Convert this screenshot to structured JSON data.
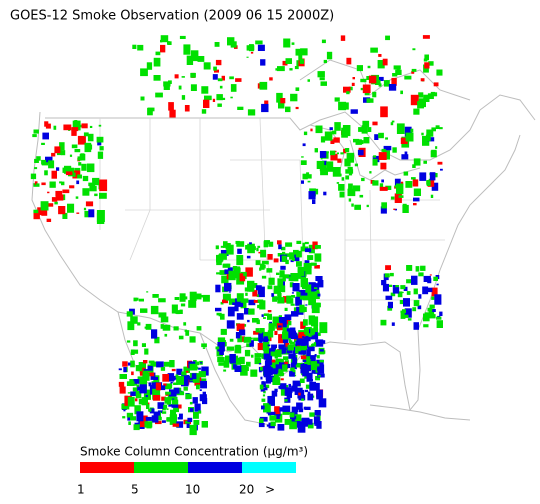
{
  "title": "GOES-12 Smoke Observation (2009 06 15  2000Z)",
  "legend": {
    "title": "Smoke Column Concentration (μg/m³)",
    "colors": [
      "#ff0000",
      "#00e000",
      "#0000e0",
      "#00ffff"
    ],
    "labels": [
      "1",
      "5",
      "10",
      "20",
      ">"
    ]
  }
}
